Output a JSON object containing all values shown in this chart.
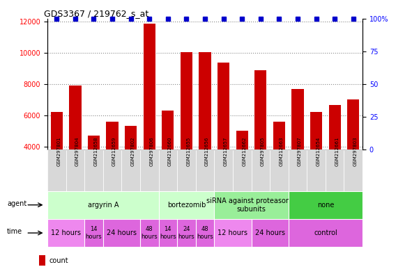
{
  "title": "GDS3367 / 219762_s_at",
  "samples": [
    "GSM297801",
    "GSM297804",
    "GSM212658",
    "GSM212659",
    "GSM297802",
    "GSM297806",
    "GSM212660",
    "GSM212655",
    "GSM212656",
    "GSM212657",
    "GSM212662",
    "GSM297805",
    "GSM212663",
    "GSM297807",
    "GSM212654",
    "GSM212661",
    "GSM297803"
  ],
  "counts": [
    6200,
    7900,
    4700,
    5600,
    5300,
    11900,
    6300,
    10050,
    10050,
    9400,
    5000,
    8900,
    5600,
    7700,
    6200,
    6650,
    7000
  ],
  "percentile": [
    100,
    100,
    100,
    100,
    100,
    100,
    100,
    100,
    100,
    100,
    100,
    100,
    100,
    100,
    100,
    100,
    100
  ],
  "ylim_left": [
    3800,
    12200
  ],
  "ylim_right": [
    0,
    100
  ],
  "yticks_left": [
    4000,
    6000,
    8000,
    10000,
    12000
  ],
  "yticks_right": [
    0,
    25,
    50,
    75,
    100
  ],
  "bar_color": "#cc0000",
  "dot_color": "#0000cc",
  "dot_size": 4,
  "agent_groups": [
    {
      "label": "argyrin A",
      "start": 0,
      "end": 6,
      "color": "#ccffcc"
    },
    {
      "label": "bortezomib",
      "start": 6,
      "end": 9,
      "color": "#ccffcc"
    },
    {
      "label": "siRNA against proteasome\nsubunits",
      "start": 9,
      "end": 13,
      "color": "#99ee99"
    },
    {
      "label": "none",
      "start": 13,
      "end": 17,
      "color": "#44cc44"
    }
  ],
  "time_groups": [
    {
      "label": "12 hours",
      "start": 0,
      "end": 2,
      "color": "#ee88ee",
      "fontsize": 7
    },
    {
      "label": "14\nhours",
      "start": 2,
      "end": 3,
      "color": "#dd66dd",
      "fontsize": 6
    },
    {
      "label": "24 hours",
      "start": 3,
      "end": 5,
      "color": "#dd66dd",
      "fontsize": 7
    },
    {
      "label": "48\nhours",
      "start": 5,
      "end": 6,
      "color": "#dd66dd",
      "fontsize": 6
    },
    {
      "label": "14\nhours",
      "start": 6,
      "end": 7,
      "color": "#dd66dd",
      "fontsize": 6
    },
    {
      "label": "24\nhours",
      "start": 7,
      "end": 8,
      "color": "#dd66dd",
      "fontsize": 6
    },
    {
      "label": "48\nhours",
      "start": 8,
      "end": 9,
      "color": "#dd66dd",
      "fontsize": 6
    },
    {
      "label": "12 hours",
      "start": 9,
      "end": 11,
      "color": "#ee88ee",
      "fontsize": 7
    },
    {
      "label": "24 hours",
      "start": 11,
      "end": 13,
      "color": "#dd66dd",
      "fontsize": 7
    },
    {
      "label": "control",
      "start": 13,
      "end": 17,
      "color": "#dd66dd",
      "fontsize": 7
    }
  ],
  "legend_count_color": "#cc0000",
  "legend_pct_color": "#0000cc",
  "background_color": "#ffffff",
  "sample_box_color": "#d8d8d8",
  "grid_color": "#888888",
  "title_fontsize": 9,
  "tick_fontsize": 7,
  "sample_fontsize": 5,
  "agent_fontsize": 7,
  "label_fontsize": 7
}
